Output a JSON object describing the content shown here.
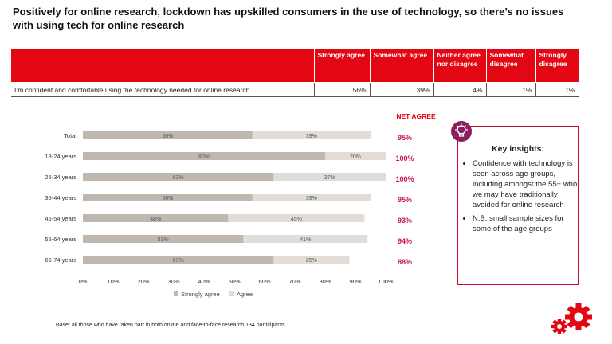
{
  "title": "Positively for online research, lockdown has upskilled consumers in the use of technology, so there’s no issues with using tech for online research",
  "table": {
    "headers": [
      "",
      "Strongly agree",
      "Somewhat agree",
      "Neither agree nor disagree",
      "Somewhat disagree",
      "Strongly disagree"
    ],
    "row": {
      "statement": "I’m confident and comfortable using the technology needed for online research",
      "values": [
        "56%",
        "39%",
        "4%",
        "1%",
        "1%"
      ]
    }
  },
  "chart_data": {
    "type": "bar",
    "orientation": "horizontal",
    "stacked": true,
    "categories": [
      "Total",
      "18-24 years",
      "25-34 years",
      "35-44 years",
      "45-54 years",
      "55-64 years",
      "65-74 years"
    ],
    "series": [
      {
        "name": "Strongly agree",
        "values": [
          56,
          80,
          63,
          56,
          48,
          53,
          63
        ],
        "color": "#bfb8b1"
      },
      {
        "name": "Agree",
        "values": [
          39,
          20,
          37,
          39,
          45,
          41,
          25
        ],
        "color": "#e2ddd8"
      }
    ],
    "xlim": [
      0,
      100
    ],
    "x_ticks": [
      "0%",
      "10%",
      "20%",
      "30%",
      "40%",
      "50%",
      "60%",
      "70%",
      "80%",
      "90%",
      "100%"
    ],
    "legend_position": "bottom",
    "net_agree_label": "NET AGREE",
    "net_agree": [
      "95%",
      "100%",
      "100%",
      "95%",
      "93%",
      "94%",
      "88%"
    ],
    "net_agree_color": "#c8105c"
  },
  "insights": {
    "title": "Key insights:",
    "items": [
      "Confidence with technology is seen across age groups, including amongst the 55+ who we may have traditionally avoided for online research",
      "N.B. small sample sizes for some of the age groups"
    ]
  },
  "footnote": "Base: all those who have taken part in both online and face-to-face research 134 participants",
  "colors": {
    "accent_red": "#e30613",
    "icon": "#8a1e5e"
  },
  "icons": {
    "insight": "lightbulb-icon",
    "brand": "gears-icon"
  }
}
